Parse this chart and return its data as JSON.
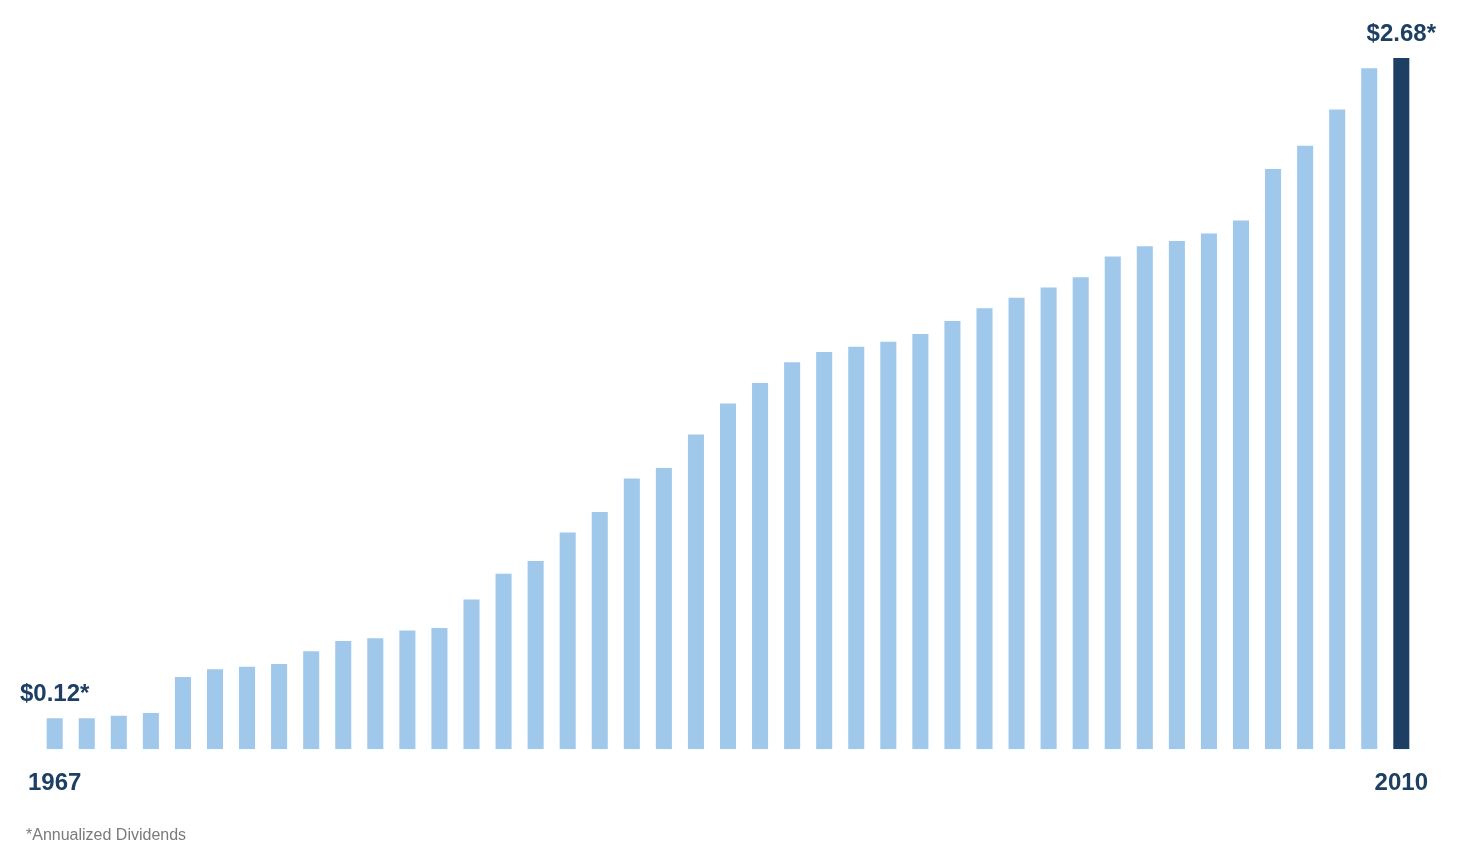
{
  "chart_data": {
    "type": "bar",
    "categories": [
      "1967",
      null,
      null,
      null,
      null,
      null,
      null,
      null,
      null,
      null,
      null,
      null,
      null,
      null,
      null,
      null,
      null,
      null,
      null,
      null,
      null,
      null,
      null,
      null,
      null,
      null,
      null,
      null,
      null,
      null,
      null,
      null,
      null,
      null,
      null,
      null,
      null,
      null,
      null,
      null,
      null,
      null,
      "2010"
    ],
    "values": [
      0.12,
      0.12,
      0.13,
      0.14,
      0.28,
      0.31,
      0.32,
      0.33,
      0.38,
      0.42,
      0.43,
      0.46,
      0.47,
      0.58,
      0.68,
      0.73,
      0.84,
      0.92,
      1.05,
      1.09,
      1.22,
      1.34,
      1.42,
      1.5,
      1.54,
      1.56,
      1.58,
      1.61,
      1.66,
      1.71,
      1.75,
      1.79,
      1.83,
      1.91,
      1.95,
      1.97,
      2.0,
      2.05,
      2.25,
      2.34,
      2.48,
      2.64,
      2.68
    ],
    "value_labels": [
      "$0.12*",
      null,
      null,
      null,
      null,
      null,
      null,
      null,
      null,
      null,
      null,
      null,
      null,
      null,
      null,
      null,
      null,
      null,
      null,
      null,
      null,
      null,
      null,
      null,
      null,
      null,
      null,
      null,
      null,
      null,
      null,
      null,
      null,
      null,
      null,
      null,
      null,
      null,
      null,
      null,
      null,
      null,
      "$2.68*"
    ],
    "colors": [
      "#9fc8ea",
      "#9fc8ea",
      "#9fc8ea",
      "#9fc8ea",
      "#9fc8ea",
      "#9fc8ea",
      "#9fc8ea",
      "#9fc8ea",
      "#9fc8ea",
      "#9fc8ea",
      "#9fc8ea",
      "#9fc8ea",
      "#9fc8ea",
      "#9fc8ea",
      "#9fc8ea",
      "#9fc8ea",
      "#9fc8ea",
      "#9fc8ea",
      "#9fc8ea",
      "#9fc8ea",
      "#9fc8ea",
      "#9fc8ea",
      "#9fc8ea",
      "#9fc8ea",
      "#9fc8ea",
      "#9fc8ea",
      "#9fc8ea",
      "#9fc8ea",
      "#9fc8ea",
      "#9fc8ea",
      "#9fc8ea",
      "#9fc8ea",
      "#9fc8ea",
      "#9fc8ea",
      "#9fc8ea",
      "#9fc8ea",
      "#9fc8ea",
      "#9fc8ea",
      "#9fc8ea",
      "#9fc8ea",
      "#9fc8ea",
      "#9fc8ea",
      "#1c3f63"
    ],
    "annotations": [
      "*Annualized Dividends"
    ],
    "grid": false,
    "legend": false
  }
}
